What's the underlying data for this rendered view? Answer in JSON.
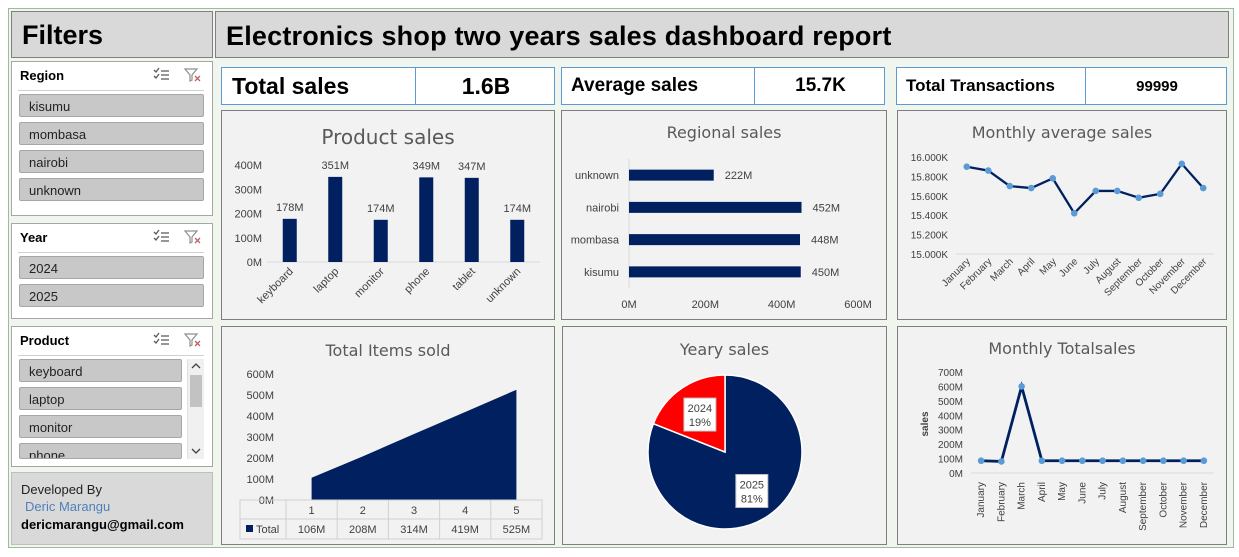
{
  "title": "Electronics shop two years sales dashboard report",
  "filters_title": "Filters",
  "slicers": {
    "region": {
      "label": "Region",
      "items": [
        "kisumu",
        "mombasa",
        "nairobi",
        "unknown"
      ]
    },
    "year": {
      "label": "Year",
      "items": [
        "2024",
        "2025"
      ]
    },
    "product": {
      "label": "Product",
      "items": [
        "keyboard",
        "laptop",
        "monitor",
        "phone"
      ]
    }
  },
  "developer": {
    "label": "Developed By",
    "name": "Deric Marangu",
    "email": "dericmarangu@gmail.com"
  },
  "kpis": {
    "total_sales": {
      "label": "Total sales",
      "value": "1.6B"
    },
    "average_sales": {
      "label": "Average sales",
      "value": "15.7K"
    },
    "total_transactions": {
      "label": "Total Transactions",
      "value": "99999"
    }
  },
  "colors": {
    "navy": "#002060",
    "red": "#ff0000",
    "point": "#5b9bd5"
  },
  "icons": [
    "multi-select-icon",
    "clear-filter-icon",
    "scroll-up-icon",
    "scroll-down-icon"
  ],
  "chart_data": [
    {
      "id": "product_sales",
      "type": "bar",
      "title": "Product sales",
      "categories": [
        "keyboard",
        "laptop",
        "monitor",
        "phone",
        "tablet",
        "unknown"
      ],
      "values": [
        178,
        351,
        174,
        349,
        347,
        174
      ],
      "data_labels": [
        "178M",
        "351M",
        "174M",
        "349M",
        "347M",
        "174M"
      ],
      "y_ticks": [
        "0M",
        "100M",
        "200M",
        "300M",
        "400M"
      ],
      "ylim": [
        0,
        400
      ]
    },
    {
      "id": "regional_sales",
      "type": "bar",
      "orientation": "horizontal",
      "title": "Regional sales",
      "categories": [
        "unknown",
        "nairobi",
        "mombasa",
        "kisumu"
      ],
      "values": [
        222,
        452,
        448,
        450
      ],
      "data_labels": [
        "222M",
        "452M",
        "448M",
        "450M"
      ],
      "x_ticks": [
        "0M",
        "200M",
        "400M",
        "600M"
      ],
      "xlim": [
        0,
        600
      ]
    },
    {
      "id": "monthly_average_sales",
      "type": "line",
      "title": "Monthly average sales",
      "categories": [
        "January",
        "February",
        "March",
        "April",
        "May",
        "June",
        "July",
        "August",
        "September",
        "October",
        "November",
        "December"
      ],
      "values": [
        15.9,
        15.86,
        15.7,
        15.68,
        15.78,
        15.42,
        15.65,
        15.65,
        15.58,
        15.62,
        15.93,
        15.68
      ],
      "y_ticks": [
        "15.000K",
        "15.200K",
        "15.400K",
        "15.600K",
        "15.800K",
        "16.000K"
      ],
      "ylim": [
        15.0,
        16.0
      ]
    },
    {
      "id": "total_items_sold",
      "type": "area",
      "title": "Total Items sold",
      "categories": [
        "1",
        "2",
        "3",
        "4",
        "5"
      ],
      "series_label": "Total",
      "values": [
        106,
        208,
        314,
        419,
        525
      ],
      "table_values": [
        "106M",
        "208M",
        "314M",
        "419M",
        "525M"
      ],
      "y_ticks": [
        "0M",
        "100M",
        "200M",
        "300M",
        "400M",
        "500M",
        "600M"
      ],
      "ylim": [
        0,
        600
      ]
    },
    {
      "id": "yeary_sales",
      "type": "pie",
      "title": "Yeary sales",
      "slices": [
        {
          "label": "2025",
          "pct_label": "81%",
          "value": 81
        },
        {
          "label": "2024",
          "pct_label": "19%",
          "value": 19
        }
      ]
    },
    {
      "id": "monthly_totalsales",
      "type": "line",
      "title": "Monthly Totalsales",
      "ylabel": "sales",
      "categories": [
        "January",
        "February",
        "March",
        "April",
        "May",
        "June",
        "July",
        "August",
        "September",
        "October",
        "November",
        "December"
      ],
      "values": [
        85,
        80,
        600,
        85,
        85,
        85,
        85,
        85,
        85,
        85,
        85,
        85
      ],
      "y_ticks": [
        "0M",
        "100M",
        "200M",
        "300M",
        "400M",
        "500M",
        "600M",
        "700M"
      ],
      "ylim": [
        0,
        700
      ]
    }
  ]
}
